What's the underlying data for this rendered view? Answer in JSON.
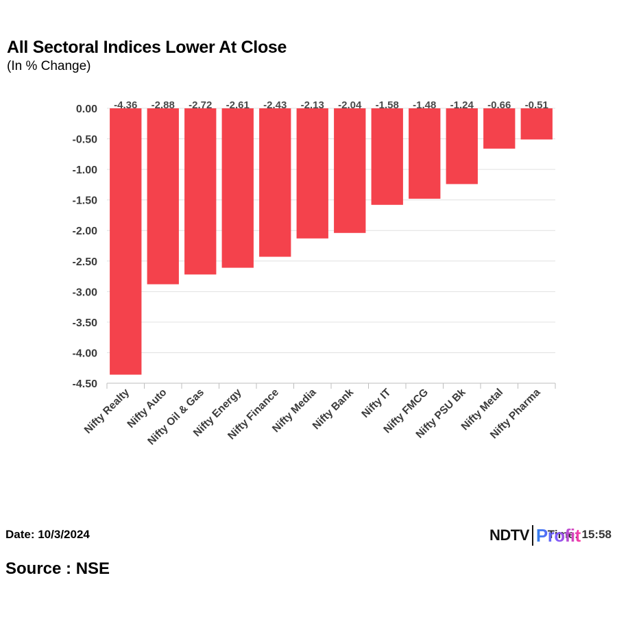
{
  "chart_data": {
    "type": "bar",
    "title": "All Sectoral Indices Lower At Close",
    "subtitle": "(In % Change)",
    "categories": [
      "Nifty Realty",
      "Nifty Auto",
      "Nifty Oil & Gas",
      "Nifty Energy",
      "Nifty Finance",
      "Nifty Media",
      "Nifty Bank",
      "Nifty IT",
      "Nifty FMCG",
      "Nifty PSU Bk",
      "Nifty Metal",
      "Nifty Pharma"
    ],
    "values": [
      -4.36,
      -2.88,
      -2.72,
      -2.61,
      -2.43,
      -2.13,
      -2.04,
      -1.58,
      -1.48,
      -1.24,
      -0.66,
      -0.51
    ],
    "value_labels": [
      "-4.36",
      "-2.88",
      "-2.72",
      "-2.61",
      "-2.43",
      "-2.13",
      "-2.04",
      "-1.58",
      "-1.48",
      "-1.24",
      "-0.66",
      "-0.51"
    ],
    "yticks": [
      0,
      -0.5,
      -1,
      -1.5,
      -2,
      -2.5,
      -3,
      -3.5,
      -4,
      -4.5
    ],
    "ytick_labels": [
      "0.00",
      "-0.50",
      "-1.00",
      "-1.50",
      "-2.00",
      "-2.50",
      "-3.00",
      "-3.50",
      "-4.00",
      "-4.50"
    ],
    "ylim": [
      -4.5,
      0
    ],
    "xlabel": "",
    "ylabel": "",
    "grid": true,
    "bar_color": "#f4424c"
  },
  "footer": {
    "date": "Date: 10/3/2024",
    "source": "Source : NSE",
    "time": "Time: 15:58"
  },
  "brand": {
    "ndtv": "NDTV",
    "profit": "Profit"
  }
}
